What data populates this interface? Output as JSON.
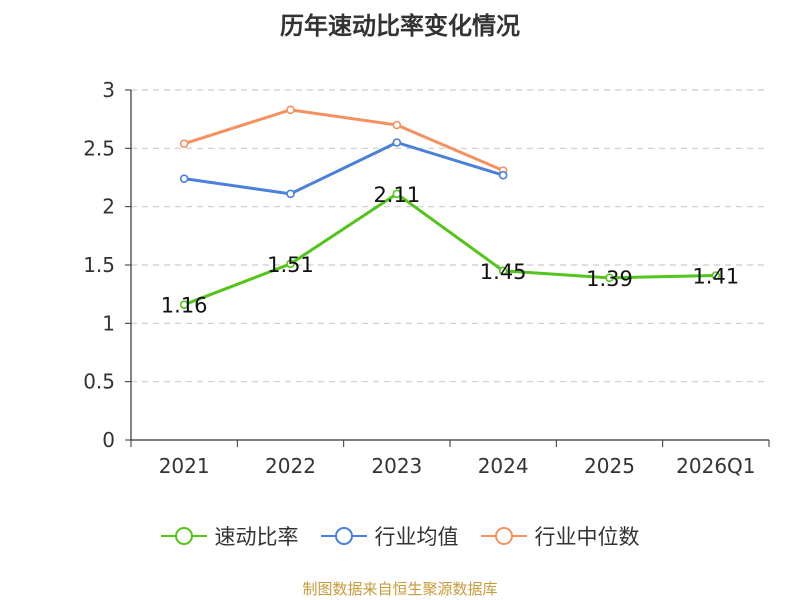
{
  "title": "历年速动比率变化情况",
  "source": "制图数据来自恒生聚源数据库",
  "colors": {
    "series_0": "#52c41a",
    "series_1": "#4a7fdc",
    "series_2": "#f59161",
    "grid": "#cccccc",
    "axis": "#333333",
    "source": "#c89a3a"
  },
  "chart_data": {
    "type": "line",
    "title": "历年速动比率变化情况",
    "categories": [
      "2021",
      "2022",
      "2023",
      "2024",
      "2025",
      "2026Q1"
    ],
    "ylim": [
      0,
      3
    ],
    "yticks": [
      0,
      0.5,
      1,
      1.5,
      2,
      2.5,
      3
    ],
    "ytick_labels": [
      "0",
      "0.5",
      "1",
      "1.5",
      "2",
      "2.5",
      "3"
    ],
    "grid": true,
    "legend_position": "bottom-center",
    "series": [
      {
        "name": "速动比率",
        "values": [
          1.16,
          1.51,
          2.11,
          1.45,
          1.39,
          1.41
        ],
        "labels": [
          "1.16",
          "1.51",
          "2.11",
          "1.45",
          "1.39",
          "1.41"
        ],
        "show_labels": true
      },
      {
        "name": "行业均值",
        "values": [
          2.24,
          2.11,
          2.55,
          2.27,
          null,
          null
        ],
        "show_labels": false
      },
      {
        "name": "行业中位数",
        "values": [
          2.54,
          2.83,
          2.7,
          2.31,
          null,
          null
        ],
        "show_labels": false
      }
    ]
  }
}
